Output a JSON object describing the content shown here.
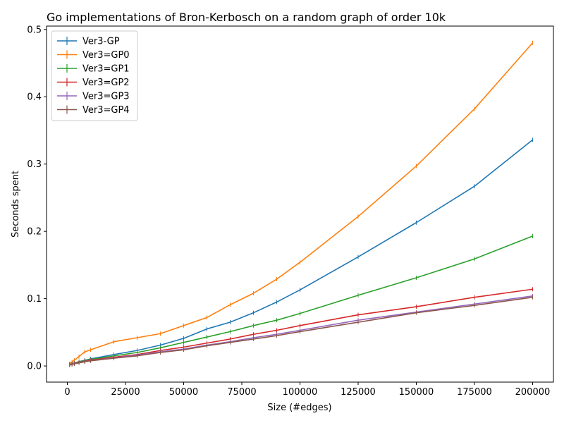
{
  "chart_data": {
    "type": "line",
    "title": "Go implementations of Bron-Kerbosch on a random graph of order 10k",
    "xlabel": "Size (#edges)",
    "ylabel": "Seconds spent",
    "xlim": [
      -8950,
      208950
    ],
    "ylim": [
      -0.024,
      0.505
    ],
    "xticks": [
      0,
      25000,
      50000,
      75000,
      100000,
      125000,
      150000,
      175000,
      200000
    ],
    "xtick_labels": [
      "0",
      "25000",
      "50000",
      "75000",
      "100000",
      "125000",
      "150000",
      "175000",
      "200000"
    ],
    "yticks": [
      0.0,
      0.1,
      0.2,
      0.3,
      0.4,
      0.5
    ],
    "ytick_labels": [
      "0.0",
      "0.1",
      "0.2",
      "0.3",
      "0.4",
      "0.5"
    ],
    "grid": false,
    "legend_position": "top-left",
    "x": [
      1000,
      2000,
      3000,
      5000,
      7500,
      10000,
      20000,
      30000,
      40000,
      50000,
      60000,
      70000,
      80000,
      90000,
      100000,
      125000,
      150000,
      175000,
      200000
    ],
    "series": [
      {
        "name": "Ver3-GP",
        "color": "#1f77b4",
        "values": [
          0.0022,
          0.0035,
          0.0045,
          0.0065,
          0.0085,
          0.0105,
          0.017,
          0.023,
          0.031,
          0.041,
          0.055,
          0.065,
          0.079,
          0.095,
          0.113,
          0.162,
          0.213,
          0.267,
          0.336
        ]
      },
      {
        "name": "Ver3=GP0",
        "color": "#ff7f0e",
        "values": [
          0.0035,
          0.006,
          0.0085,
          0.014,
          0.021,
          0.024,
          0.036,
          0.042,
          0.048,
          0.06,
          0.072,
          0.091,
          0.108,
          0.129,
          0.154,
          0.222,
          0.297,
          0.382,
          0.48
        ]
      },
      {
        "name": "Ver3=GP1",
        "color": "#2ca02c",
        "values": [
          0.002,
          0.003,
          0.004,
          0.006,
          0.008,
          0.0095,
          0.015,
          0.02,
          0.027,
          0.035,
          0.043,
          0.051,
          0.06,
          0.068,
          0.078,
          0.105,
          0.131,
          0.159,
          0.193
        ]
      },
      {
        "name": "Ver3=GP2",
        "color": "#d62728",
        "values": [
          0.0018,
          0.0028,
          0.0036,
          0.0052,
          0.007,
          0.0085,
          0.013,
          0.017,
          0.023,
          0.028,
          0.034,
          0.04,
          0.047,
          0.053,
          0.06,
          0.076,
          0.088,
          0.102,
          0.114
        ]
      },
      {
        "name": "Ver3=GP3",
        "color": "#9467bd",
        "values": [
          0.0016,
          0.0025,
          0.0033,
          0.0048,
          0.0064,
          0.0078,
          0.012,
          0.016,
          0.021,
          0.025,
          0.031,
          0.036,
          0.042,
          0.047,
          0.053,
          0.068,
          0.08,
          0.092,
          0.104
        ]
      },
      {
        "name": "Ver3=GP4",
        "color": "#8c564b",
        "values": [
          0.0015,
          0.0023,
          0.0031,
          0.0046,
          0.0062,
          0.0076,
          0.0115,
          0.015,
          0.02,
          0.024,
          0.03,
          0.035,
          0.04,
          0.045,
          0.051,
          0.065,
          0.079,
          0.09,
          0.102
        ]
      }
    ]
  }
}
